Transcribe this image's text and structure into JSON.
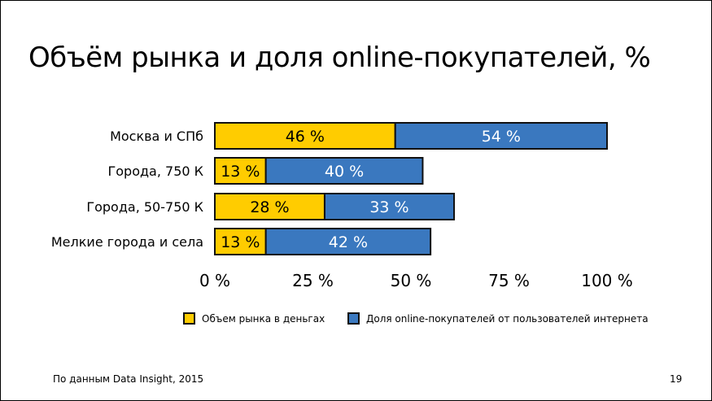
{
  "title": "Объём рынка и доля online-покупателей, %",
  "chart_data": {
    "type": "bar",
    "orientation": "horizontal",
    "stacked": true,
    "categories": [
      "Москва и СПб",
      "Города, 750 К",
      "Города, 50-750 К",
      "Мелкие города и села"
    ],
    "series": [
      {
        "name": "Объем рынка в деньгах",
        "values": [
          46,
          13,
          28,
          13
        ],
        "labels": [
          "46 %",
          "13 %",
          "28 %",
          "13 %"
        ],
        "color": "#FFCC00",
        "label_color": "#000000"
      },
      {
        "name": "Доля online-покупателей от пользователей интернета",
        "values": [
          54,
          40,
          33,
          42
        ],
        "labels": [
          "54 %",
          "40 %",
          "33 %",
          "42 %"
        ],
        "color": "#3A78BF",
        "label_color": "#FFFFFF"
      }
    ],
    "xlim": [
      0,
      100
    ],
    "xticks": [
      "0 %",
      "25 %",
      "50 %",
      "75 %",
      "100 %"
    ],
    "grid": false,
    "legend": "bottom"
  },
  "footer": {
    "source": "По данным Data Insight, 2015",
    "page": "19"
  }
}
